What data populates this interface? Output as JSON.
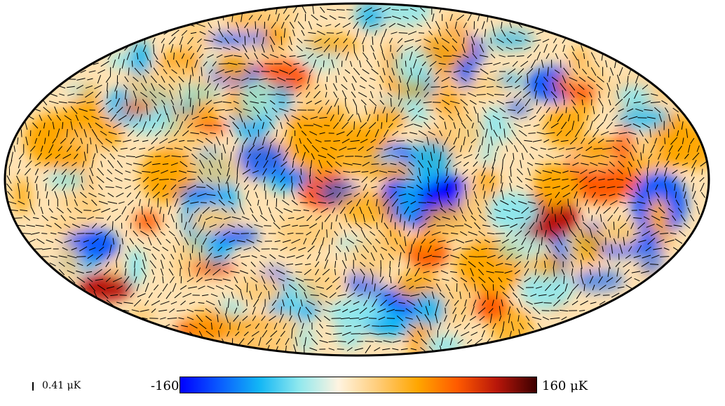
{
  "map": {
    "projection": "mollweide",
    "field": "temperature anisotropy with polarization headlines",
    "colormap": [
      "#0000ff",
      "#0a5cff",
      "#12b6f5",
      "#8fe8ee",
      "#fff4e1",
      "#ffcc78",
      "#ffa600",
      "#ff5a00",
      "#b8160a",
      "#3c0000"
    ],
    "outline_color": "#000000"
  },
  "colorbar": {
    "min_label": "-160",
    "max_label": "160 μK",
    "vmin": -160,
    "vmax": 160
  },
  "polarization_scale": {
    "label": "0.41 μK"
  }
}
